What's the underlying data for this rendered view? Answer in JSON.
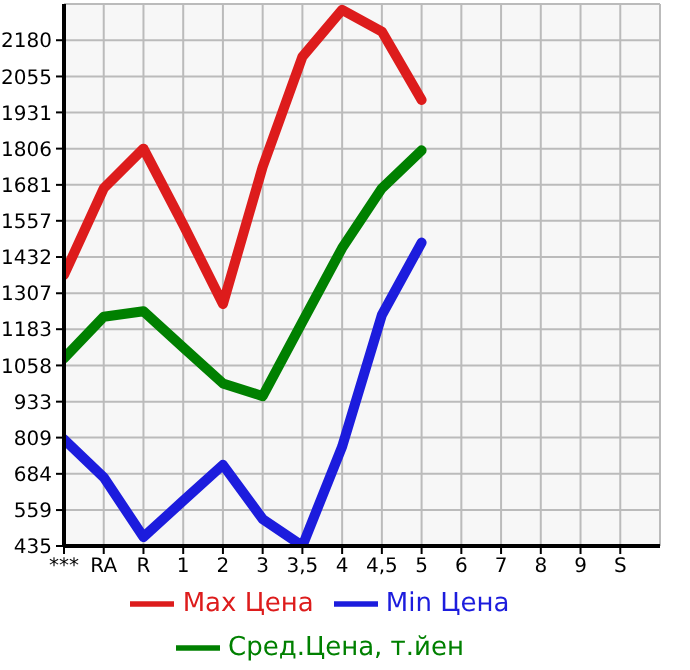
{
  "chart_data": {
    "type": "line",
    "categories": [
      "***",
      "RA",
      "R",
      "1",
      "2",
      "3",
      "3,5",
      "4",
      "4,5",
      "5",
      "6",
      "7",
      "8",
      "9",
      "S"
    ],
    "series": [
      {
        "name": "Max Цена",
        "color": "#dd1c1c",
        "values": [
          1370,
          1669,
          1806,
          1544,
          1270,
          1743,
          2123,
          2285,
          2210,
          1974,
          null,
          null,
          null,
          null,
          null
        ]
      },
      {
        "name": "Min Цена",
        "color": "#1c1cdd",
        "values": [
          803,
          672,
          466,
          591,
          715,
          528,
          435,
          778,
          1232,
          1482,
          null,
          null,
          null,
          null,
          null
        ]
      },
      {
        "name": "Сред.Цена, т.йен",
        "color": "#008000",
        "values": [
          1083,
          1226,
          1245,
          1120,
          996,
          952,
          1208,
          1463,
          1669,
          1800,
          null,
          null,
          null,
          null,
          null
        ]
      }
    ],
    "ylim": [
      435,
      2305
    ],
    "yticks": [
      435,
      559,
      684,
      809,
      933,
      1058,
      1183,
      1307,
      1432,
      1557,
      1681,
      1806,
      1931,
      2055,
      2180
    ],
    "grid": true,
    "legend": "bottom",
    "marker": "none",
    "line_style": "solid"
  }
}
